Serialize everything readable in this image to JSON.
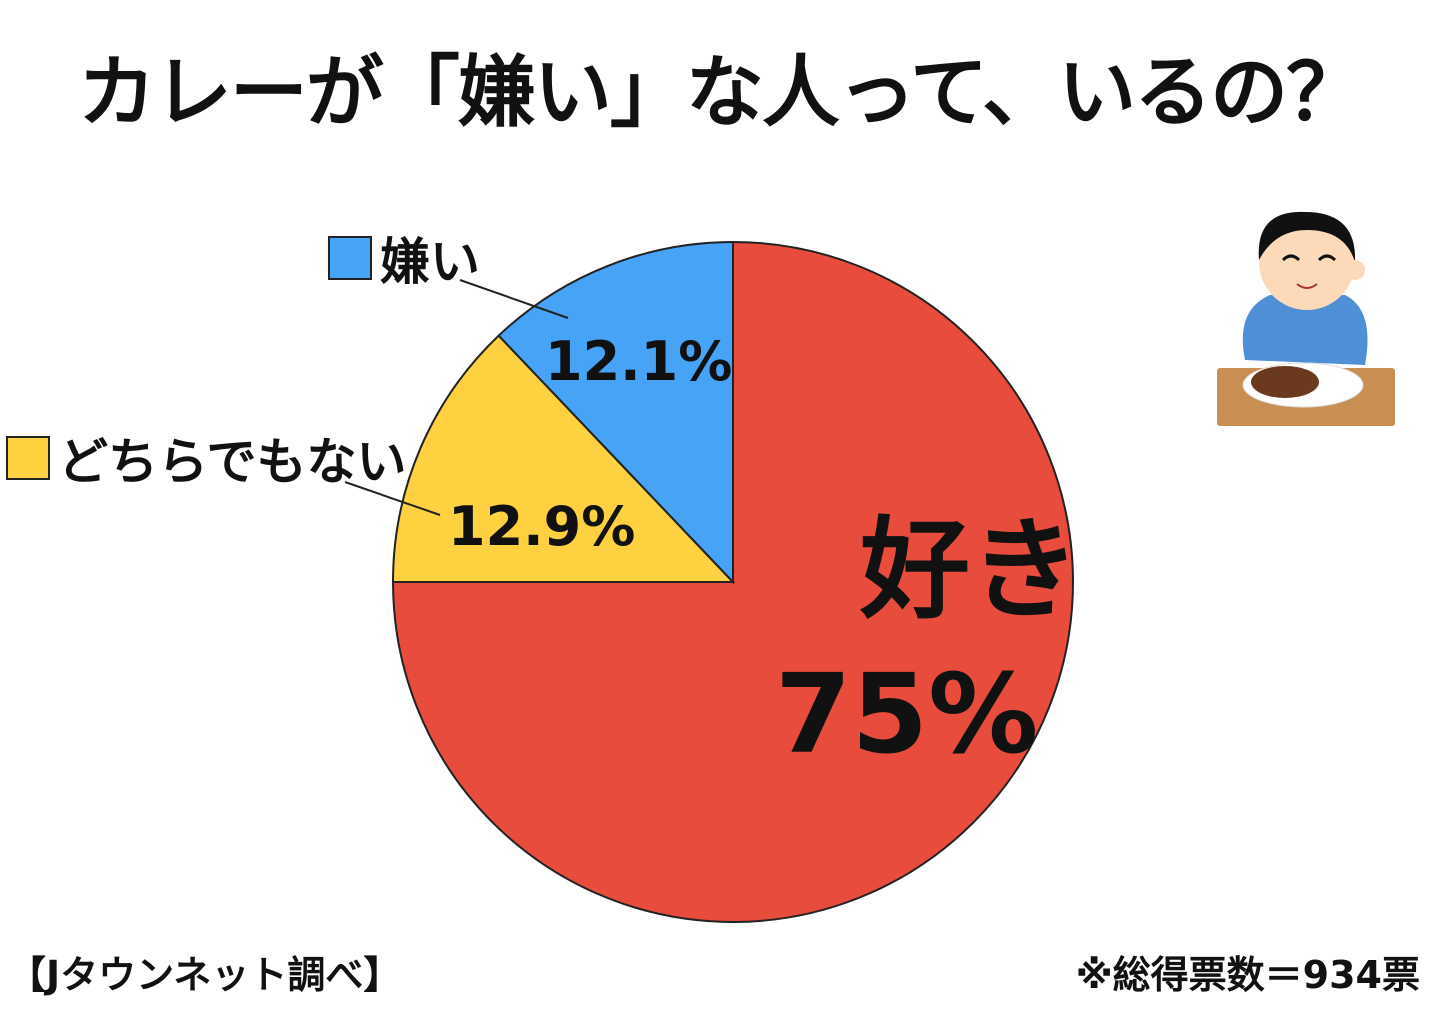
{
  "title": "カレーが「嫌い」な人って、いるの？",
  "chart_data": {
    "type": "pie",
    "title": "カレーが「嫌い」な人って、いるの？",
    "start": "top",
    "direction": "clockwise",
    "slices": [
      {
        "label": "好き",
        "value": 75,
        "value_label": "75%",
        "color": "#E84C3D"
      },
      {
        "label": "どちらでもない",
        "value": 12.9,
        "value_label": "12.9%",
        "color": "#FFD040"
      },
      {
        "label": "嫌い",
        "value": 12.1,
        "value_label": "12.1%",
        "color": "#46A3F5"
      }
    ]
  },
  "source": "【Jタウンネット調べ】",
  "note": "※総得票数＝934票",
  "illustration": "boy-eating-curry-icon"
}
